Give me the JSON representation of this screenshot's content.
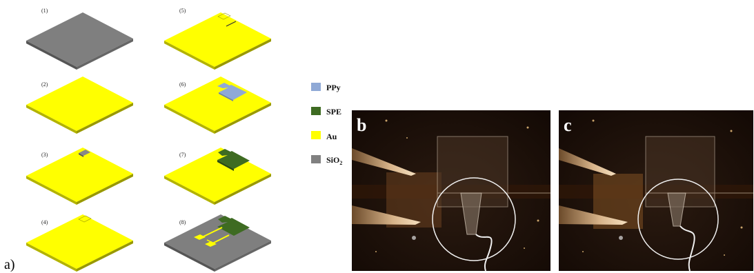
{
  "figure_label": "a)",
  "steps": [
    {
      "label": "(1)",
      "base": "SiO2"
    },
    {
      "label": "(2)",
      "base": "Au"
    },
    {
      "label": "(3)",
      "base": "Au"
    },
    {
      "label": "(4)",
      "base": "Au"
    },
    {
      "label": "(5)",
      "base": "Au"
    },
    {
      "label": "(6)",
      "base": "Au"
    },
    {
      "label": "(7)",
      "base": "Au"
    },
    {
      "label": "(8)",
      "base": "SiO2"
    }
  ],
  "legend": [
    {
      "label": "PPy",
      "color": "#8fa9d6"
    },
    {
      "label": "SPE",
      "color": "#3e6b22"
    },
    {
      "label": "Au",
      "color": "#ffff00"
    },
    {
      "label": "SiO",
      "sub": "2",
      "color": "#808080"
    }
  ],
  "photos": [
    {
      "letter": "b"
    },
    {
      "letter": "c"
    }
  ],
  "colors": {
    "au": "#ffff00",
    "au_side": "#b8b800",
    "sio2": "#7f7f7f",
    "sio2_side": "#555555",
    "ppy": "#8fa9d6",
    "spe": "#3e6b22"
  }
}
